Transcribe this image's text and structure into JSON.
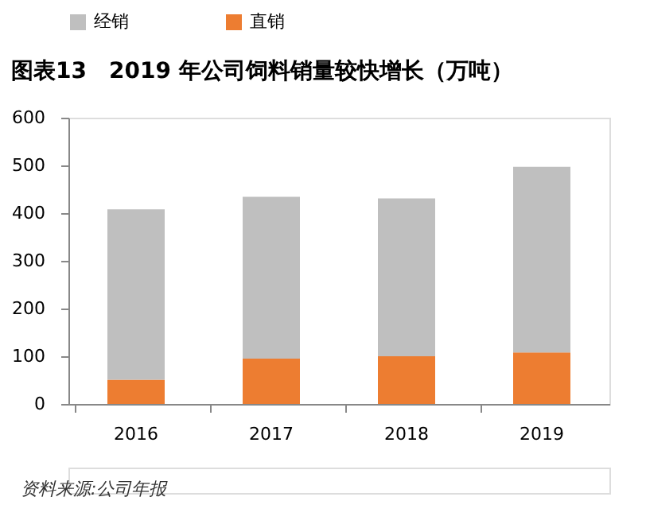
{
  "chart_data": {
    "type": "bar",
    "title": "图表13　2019 年公司饲料销量较快增长（万吨）",
    "categories": [
      "2016",
      "2017",
      "2018",
      "2019"
    ],
    "stacked": true,
    "series": [
      {
        "name": "直销",
        "color": "#ed7d31",
        "values": [
          51,
          95,
          100,
          108
        ]
      },
      {
        "name": "经销",
        "color": "#bfbfbf",
        "values": [
          357,
          339,
          331,
          389
        ]
      }
    ],
    "ylim": [
      0,
      600
    ],
    "yticks": [
      0,
      100,
      200,
      300,
      400,
      500,
      600
    ],
    "grid": false,
    "legend": "top",
    "annotations": [
      "资料来源:公司年报"
    ]
  }
}
